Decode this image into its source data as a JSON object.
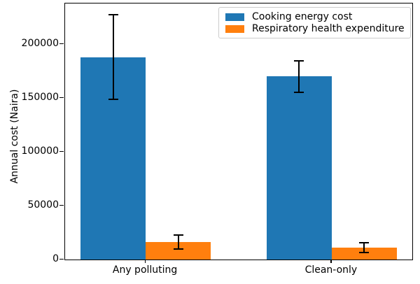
{
  "chart_data": {
    "type": "bar",
    "categories": [
      "Any polluting",
      "Clean-only"
    ],
    "series": [
      {
        "name": "Cooking energy cost",
        "color": "#1f77b4",
        "values": [
          188000,
          170000
        ],
        "errors": [
          39000,
          14500
        ]
      },
      {
        "name": "Respiratory health expenditure",
        "color": "#ff7f0e",
        "values": [
          16000,
          11000
        ],
        "errors": [
          6500,
          4500
        ]
      }
    ],
    "title": "",
    "xlabel": "",
    "ylabel": "Annual cost (Naira)",
    "yticks": [
      0,
      50000,
      100000,
      150000,
      200000
    ],
    "ylim": [
      0,
      237700
    ],
    "xlim": [
      -0.433,
      1.433
    ],
    "bar_width": 0.35,
    "grid": false,
    "legend_position": "upper right",
    "error_bar_color": "#000000",
    "background_color": "#ffffff"
  }
}
